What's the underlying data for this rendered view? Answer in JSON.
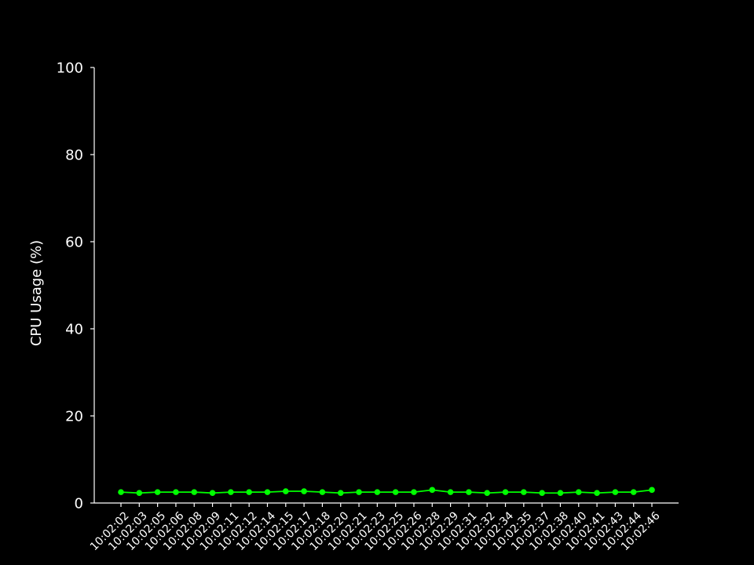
{
  "chart_data": {
    "type": "line",
    "title": "",
    "xlabel": "",
    "ylabel": "CPU Usage (%)",
    "ylim": [
      0,
      100
    ],
    "yticks": [
      0,
      20,
      40,
      60,
      80,
      100
    ],
    "grid": false,
    "background": "#000000",
    "axis_color": "#ffffff",
    "x": [
      "10:02:02",
      "10:02:03",
      "10:02:05",
      "10:02:06",
      "10:02:08",
      "10:02:09",
      "10:02:11",
      "10:02:12",
      "10:02:14",
      "10:02:15",
      "10:02:17",
      "10:02:18",
      "10:02:20",
      "10:02:21",
      "10:02:23",
      "10:02:25",
      "10:02:26",
      "10:02:28",
      "10:02:29",
      "10:02:31",
      "10:02:32",
      "10:02:34",
      "10:02:35",
      "10:02:37",
      "10:02:38",
      "10:02:40",
      "10:02:41",
      "10:02:43",
      "10:02:44",
      "10:02:46"
    ],
    "series": [
      {
        "color": "#00ff00",
        "marker": "circle",
        "values": [
          2.5,
          2.3,
          2.5,
          2.5,
          2.5,
          2.3,
          2.5,
          2.5,
          2.5,
          2.7,
          2.7,
          2.5,
          2.3,
          2.5,
          2.5,
          2.5,
          2.5,
          3.0,
          2.5,
          2.5,
          2.3,
          2.5,
          2.5,
          2.3,
          2.3,
          2.5,
          2.3,
          2.5,
          2.5,
          3.0
        ]
      }
    ]
  }
}
